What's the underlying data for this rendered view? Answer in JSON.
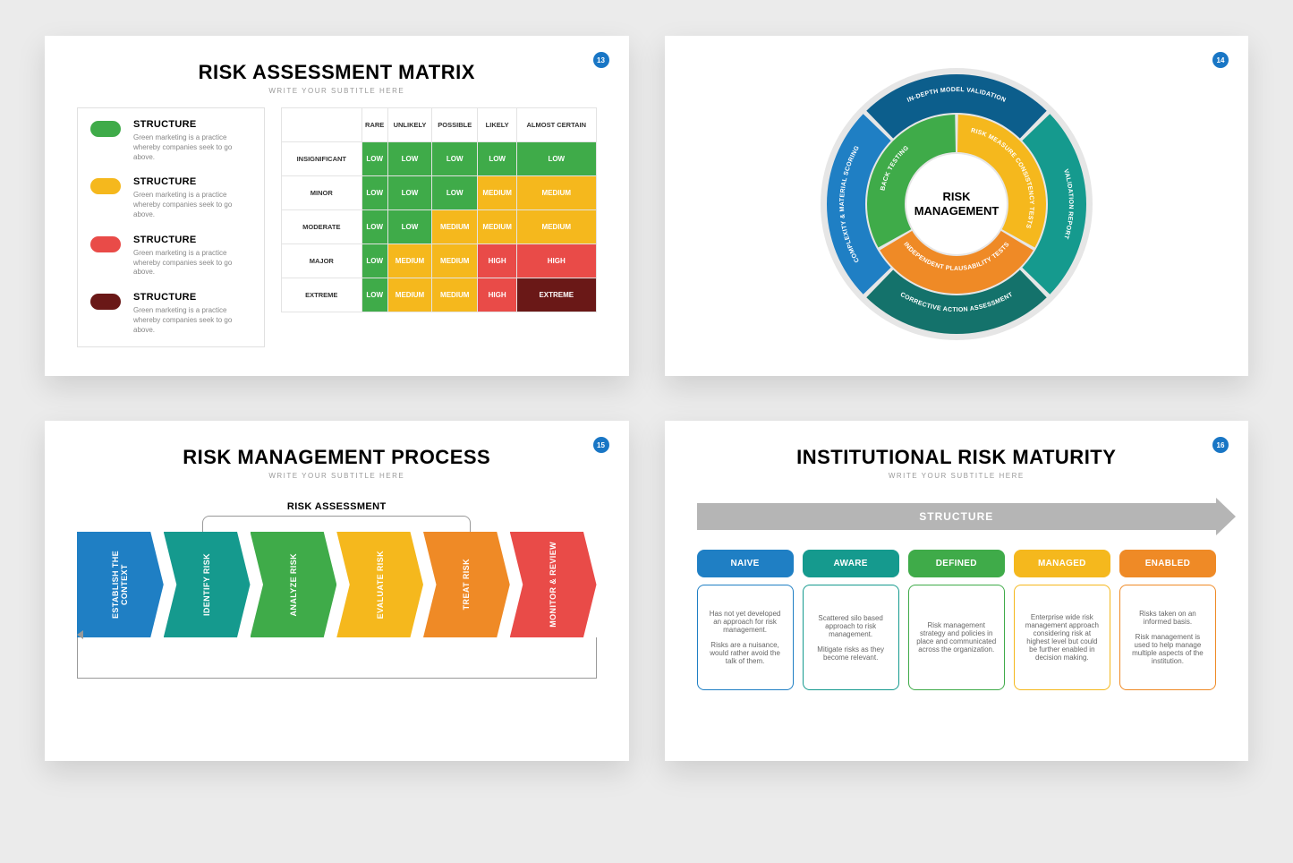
{
  "colors": {
    "blue": "#1f7fc4",
    "teal": "#159a8e",
    "green": "#3fab49",
    "yellow": "#f5b81d",
    "orange": "#ef8a26",
    "red": "#e94b48",
    "darkred": "#6a1817",
    "navy": "#0c5e8c",
    "grey": "#b5b5b5"
  },
  "slide1": {
    "page": "13",
    "title": "RISK ASSESSMENT MATRIX",
    "subtitle": "WRITE YOUR SUBTITLE HERE",
    "legend": [
      {
        "color": "#3fab49",
        "title": "STRUCTURE",
        "desc": "Green marketing is a practice whereby companies seek to go above."
      },
      {
        "color": "#f5b81d",
        "title": "STRUCTURE",
        "desc": "Green marketing is a practice whereby companies seek to go above."
      },
      {
        "color": "#e94b48",
        "title": "STRUCTURE",
        "desc": "Green marketing is a practice whereby companies seek to go above."
      },
      {
        "color": "#6a1817",
        "title": "STRUCTURE",
        "desc": "Green marketing is a practice whereby companies seek to go above."
      }
    ],
    "cols": [
      "RARE",
      "UNLIKELY",
      "POSSIBLE",
      "LIKELY",
      "ALMOST CERTAIN"
    ],
    "rows": [
      "INSIGNIFICANT",
      "MINOR",
      "MODERATE",
      "MAJOR",
      "EXTREME"
    ],
    "cells": [
      [
        [
          "LOW",
          "#3fab49"
        ],
        [
          "LOW",
          "#3fab49"
        ],
        [
          "LOW",
          "#3fab49"
        ],
        [
          "LOW",
          "#3fab49"
        ],
        [
          "LOW",
          "#3fab49"
        ]
      ],
      [
        [
          "LOW",
          "#3fab49"
        ],
        [
          "LOW",
          "#3fab49"
        ],
        [
          "LOW",
          "#3fab49"
        ],
        [
          "MEDIUM",
          "#f5b81d"
        ],
        [
          "MEDIUM",
          "#f5b81d"
        ]
      ],
      [
        [
          "LOW",
          "#3fab49"
        ],
        [
          "LOW",
          "#3fab49"
        ],
        [
          "MEDIUM",
          "#f5b81d"
        ],
        [
          "MEDIUM",
          "#f5b81d"
        ],
        [
          "MEDIUM",
          "#f5b81d"
        ]
      ],
      [
        [
          "LOW",
          "#3fab49"
        ],
        [
          "MEDIUM",
          "#f5b81d"
        ],
        [
          "MEDIUM",
          "#f5b81d"
        ],
        [
          "HIGH",
          "#e94b48"
        ],
        [
          "HIGH",
          "#e94b48"
        ]
      ],
      [
        [
          "LOW",
          "#3fab49"
        ],
        [
          "MEDIUM",
          "#f5b81d"
        ],
        [
          "MEDIUM",
          "#f5b81d"
        ],
        [
          "HIGH",
          "#e94b48"
        ],
        [
          "EXTREME",
          "#6a1817"
        ]
      ]
    ]
  },
  "slide2": {
    "page": "14",
    "center_top": "RISK",
    "center_bottom": "MANAGEMENT",
    "outer": [
      {
        "label": "IN-DEPTH MODEL VALIDATION",
        "color": "#0c5e8c"
      },
      {
        "label": "VALIDATION REPORT",
        "color": "#159a8e"
      },
      {
        "label": "CORRECTIVE ACTION ASSESSMENT",
        "color": "#14726b"
      },
      {
        "label": "COMPLEXITY & MATERIAL SCORING",
        "color": "#1f7fc4"
      }
    ],
    "inner": [
      {
        "label": "RISK MEASURE CONSISTENCY TESTS",
        "color": "#f5b81d"
      },
      {
        "label": "INDEPENDENT PLAUSABILITY TESTS",
        "color": "#ef8a26"
      },
      {
        "label": "BACK TESTING",
        "color": "#3fab49"
      }
    ]
  },
  "slide3": {
    "page": "15",
    "title": "RISK MANAGEMENT PROCESS",
    "subtitle": "WRITE YOUR SUBTITLE HERE",
    "group_label": "RISK ASSESSMENT",
    "steps": [
      {
        "label": "ESTABLISH THE CONTEXT",
        "color": "#1f7fc4"
      },
      {
        "label": "IDENTIFY RISK",
        "color": "#159a8e"
      },
      {
        "label": "ANALYZE RISK",
        "color": "#3fab49"
      },
      {
        "label": "EVALUATE RISK",
        "color": "#f5b81d"
      },
      {
        "label": "TREAT RISK",
        "color": "#ef8a26"
      },
      {
        "label": "MONITOR & REVIEW",
        "color": "#e94b48"
      }
    ]
  },
  "slide4": {
    "page": "16",
    "title": "INSTITUTIONAL RISK MATURITY",
    "subtitle": "WRITE YOUR SUBTITLE HERE",
    "arrow": "STRUCTURE",
    "cards": [
      {
        "title": "NAIVE",
        "color": "#1f7fc4",
        "p1": "Has not yet developed an approach for risk management.",
        "p2": "Risks are a nuisance, would rather avoid the talk of them."
      },
      {
        "title": "AWARE",
        "color": "#159a8e",
        "p1": "Scattered silo based approach to risk management.",
        "p2": "Mitigate risks as they become relevant."
      },
      {
        "title": "DEFINED",
        "color": "#3fab49",
        "p1": "Risk management strategy and policies in place and communicated across the organization.",
        "p2": ""
      },
      {
        "title": "MANAGED",
        "color": "#f5b81d",
        "p1": "Enterprise wide risk management approach considering risk at highest level but could be further enabled in decision making.",
        "p2": ""
      },
      {
        "title": "ENABLED",
        "color": "#ef8a26",
        "p1": "Risks taken on an informed basis.",
        "p2": "Risk management is used to help manage multiple aspects of the institution."
      }
    ]
  }
}
